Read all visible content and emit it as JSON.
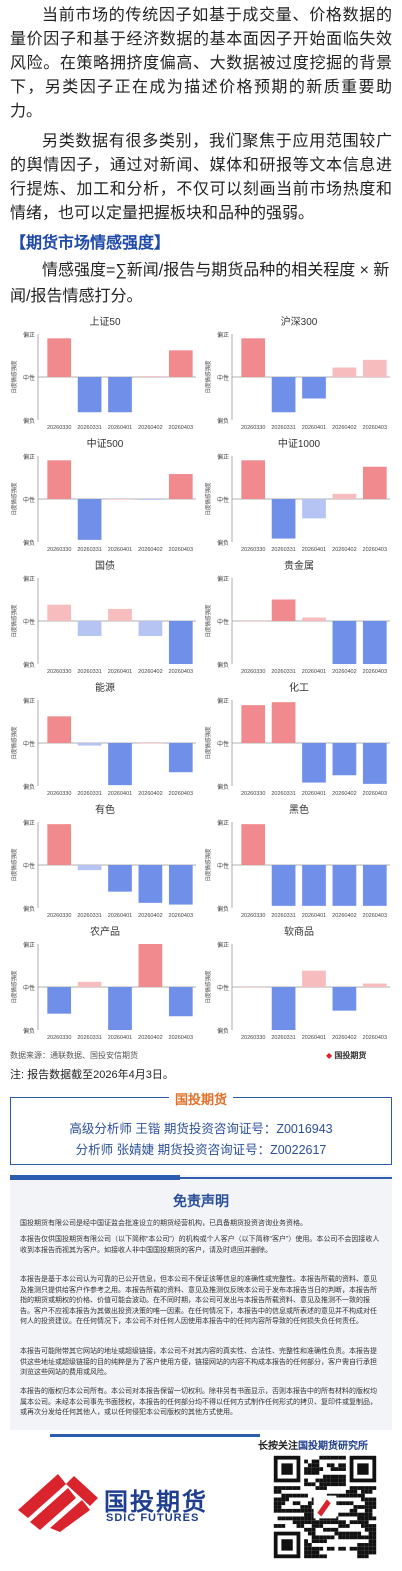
{
  "article": {
    "para1": "当前市场的传统因子如基于成交量、价格数据的量价因子和基于经济数据的基本面因子开始面临失效风险。在策略拥挤度偏高、大数据被过度挖掘的背景下，另类因子正在成为描述价格预期的新质重要助力。",
    "para2": "另类数据有很多类别，我们聚焦于应用范围较广的舆情因子，通过对新闻、媒体和研报等文本信息进行提炼、加工和分析，不仅可以刻画当前市场热度和情绪，也可以定量把握板块和品种的强弱。",
    "section_title": "【期货市场情感强度】",
    "formula": "情感强度=∑新闻/报告与期货品种的相关程度 × 新闻/报告情感打分。"
  },
  "chart_common": {
    "ylabel": "日度情感强度",
    "y_ticks": [
      "偏正",
      "中性",
      "偏负"
    ],
    "categories": [
      "20260330",
      "20260331",
      "20260401",
      "20260402",
      "20260403"
    ]
  },
  "chart_data": [
    {
      "type": "bar",
      "title": "上证50",
      "ylim": [
        -1,
        1
      ],
      "categories": [
        "20260330",
        "20260331",
        "20260401",
        "20260402",
        "20260403"
      ],
      "values": [
        0.9,
        -0.82,
        -0.82,
        0.02,
        0.62
      ]
    },
    {
      "type": "bar",
      "title": "沪深300",
      "ylim": [
        -1,
        1
      ],
      "categories": [
        "20260330",
        "20260331",
        "20260401",
        "20260402",
        "20260403"
      ],
      "values": [
        0.9,
        -0.82,
        -0.5,
        0.22,
        0.4
      ]
    },
    {
      "type": "bar",
      "title": "中证500",
      "ylim": [
        -1,
        1
      ],
      "categories": [
        "20260330",
        "20260331",
        "20260401",
        "20260402",
        "20260403"
      ],
      "values": [
        0.9,
        -0.95,
        0.0,
        -0.02,
        0.58
      ]
    },
    {
      "type": "bar",
      "title": "中证1000",
      "ylim": [
        -1,
        1
      ],
      "categories": [
        "20260330",
        "20260331",
        "20260401",
        "20260402",
        "20260403"
      ],
      "values": [
        0.9,
        -0.92,
        -0.45,
        0.12,
        0.75
      ]
    },
    {
      "type": "bar",
      "title": "国债",
      "ylim": [
        -1,
        1
      ],
      "categories": [
        "20260330",
        "20260331",
        "20260401",
        "20260402",
        "20260403"
      ],
      "values": [
        0.38,
        -0.35,
        0.28,
        -0.35,
        -1.0
      ]
    },
    {
      "type": "bar",
      "title": "贵金属",
      "ylim": [
        -1,
        1
      ],
      "categories": [
        "20260330",
        "20260331",
        "20260401",
        "20260402",
        "20260403"
      ],
      "values": [
        0.0,
        0.5,
        0.08,
        -1.0,
        -1.0
      ]
    },
    {
      "type": "bar",
      "title": "能源",
      "ylim": [
        -1,
        1
      ],
      "categories": [
        "20260330",
        "20260331",
        "20260401",
        "20260402",
        "20260403"
      ],
      "values": [
        0.62,
        -0.06,
        -0.98,
        0.0,
        -0.68
      ]
    },
    {
      "type": "bar",
      "title": "化工",
      "ylim": [
        -1,
        1
      ],
      "categories": [
        "20260330",
        "20260331",
        "20260401",
        "20260402",
        "20260403"
      ],
      "values": [
        0.88,
        0.95,
        -0.92,
        -0.75,
        -0.95
      ]
    },
    {
      "type": "bar",
      "title": "有色",
      "ylim": [
        -1,
        1
      ],
      "categories": [
        "20260330",
        "20260331",
        "20260401",
        "20260402",
        "20260403"
      ],
      "values": [
        0.95,
        -0.12,
        -0.62,
        -0.88,
        -0.92
      ]
    },
    {
      "type": "bar",
      "title": "黑色",
      "ylim": [
        -1,
        1
      ],
      "categories": [
        "20260330",
        "20260331",
        "20260401",
        "20260402",
        "20260403"
      ],
      "values": [
        0.95,
        -0.95,
        -0.95,
        -0.95,
        -0.95
      ]
    },
    {
      "type": "bar",
      "title": "农产品",
      "ylim": [
        -1,
        1
      ],
      "categories": [
        "20260330",
        "20260331",
        "20260401",
        "20260402",
        "20260403"
      ],
      "values": [
        -0.62,
        0.12,
        -1.0,
        1.0,
        -0.68
      ]
    },
    {
      "type": "bar",
      "title": "软商品",
      "ylim": [
        -1,
        1
      ],
      "categories": [
        "20260330",
        "20260331",
        "20260401",
        "20260402",
        "20260403"
      ],
      "values": [
        0.0,
        -1.0,
        0.38,
        -0.55,
        0.08
      ]
    }
  ],
  "chart_source": "数据来源：通联数据、国投安信期货",
  "chart_brand": "国投期货",
  "note": "注: 报告数据截至2026年4月3日。",
  "analyst": {
    "head": "国投期货",
    "line1": "高级分析师  王锴  期货投资咨询证号：Z0016943",
    "line2": "分析师  张婧婕 期货投资咨询证号：Z0022617"
  },
  "disclaimer": {
    "title": "免责声明",
    "p1": "国投期货有限公司是经中国证监会批准设立的期货经营机构，已具备期货投资咨询业务资格。",
    "p2": "本报告仅供国投期货有限公司（以下简称“本公司”）的机构或个人客户（以下简称“客户”）使用。本公司不会因接收人收到本报告而视其为客户。如接收人非中国国投期货的客户，请及时退回并删除。",
    "p3": "本报告是基于本公司认为可靠的已公开信息，但本公司不保证该等信息的准确性或完整性。本报告所载的资料、意见及推测只提供给客户作参考之用。本报告所载的资料、意见及推测仅反映本公司于发布本报告当日的判断，本报告所指的期货或期权的价格、价值可能会波动。在不同时期，本公司可发出与本报告所载资料、意见及推测不一致的报告。客户不应视本报告为其做出投资决策的唯一因素。在任何情况下，本报告中的信息或所表述的意见并不构成对任何人的投资建议。在任何情况下，本公司不对任何人因使用本报告中的任何内容所导致的任何损失负任何责任。",
    "p4": "本报告可能附带其它网站的地址或超级链接，本公司不对其内容的真实性、合法性、完整性和准确性负责。本报告提供这些地址或超级链接的目的纯粹是为了客户使用方便，链接网站的内容不构成本报告的任何部分，客户需自行承担浏览这些网站的费用或风险。",
    "p5": "本报告的版权归本公司所有。本公司对本报告保留一切权利。除非另有书面显示，否则本报告中的所有材料的版权均属本公司。未经本公司事先书面授权，本报告的任何部分均不得以任何方式制作任何形式的拷贝、复印件或复制品，或再次分发给任何其他人，或以任何侵犯本公司版权的其他方式使用。"
  },
  "footer": {
    "logo_cn": "国投期货",
    "logo_en": "SDIC FUTURES",
    "follow_prefix": "长按关注",
    "follow_name": "国投期货研究所"
  },
  "colors": {
    "positive": "#f08a8e",
    "positive_light": "#f7bcbe",
    "negative": "#6f8fe8",
    "negative_light": "#b5c4f2",
    "title_blue": "#1f4aa8",
    "accent_orange": "#e2702a"
  }
}
